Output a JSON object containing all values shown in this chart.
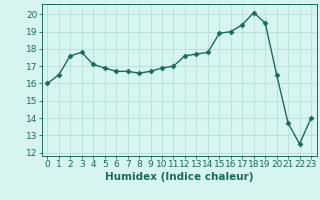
{
  "x": [
    0,
    1,
    2,
    3,
    4,
    5,
    6,
    7,
    8,
    9,
    10,
    11,
    12,
    13,
    14,
    15,
    16,
    17,
    18,
    19,
    20,
    21,
    22,
    23
  ],
  "y": [
    16.0,
    16.5,
    17.6,
    17.8,
    17.1,
    16.9,
    16.7,
    16.7,
    16.6,
    16.7,
    16.9,
    17.0,
    17.6,
    17.7,
    17.8,
    18.9,
    19.0,
    19.4,
    20.1,
    19.5,
    16.5,
    13.7,
    12.5,
    14.0
  ],
  "xlim": [
    -0.5,
    23.5
  ],
  "ylim": [
    11.8,
    20.6
  ],
  "yticks": [
    12,
    13,
    14,
    15,
    16,
    17,
    18,
    19,
    20
  ],
  "xticks": [
    0,
    1,
    2,
    3,
    4,
    5,
    6,
    7,
    8,
    9,
    10,
    11,
    12,
    13,
    14,
    15,
    16,
    17,
    18,
    19,
    20,
    21,
    22,
    23
  ],
  "xlabel": "Humidex (Indice chaleur)",
  "line_color": "#1a6b5a",
  "marker": "D",
  "marker_size": 2.5,
  "bg_color": "#d6f5f0",
  "grid_color": "#b8e0d8",
  "tick_fontsize": 6.5,
  "xlabel_fontsize": 7.5
}
